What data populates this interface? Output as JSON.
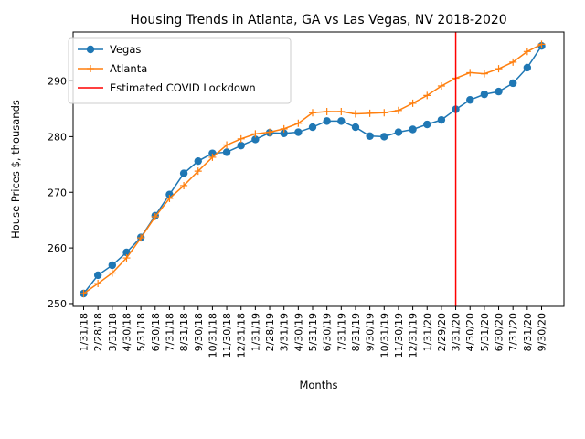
{
  "chart_data": {
    "type": "line",
    "title": "Housing Trends in Atlanta, GA vs Las Vegas, NV 2018-2020",
    "xlabel": "Months",
    "ylabel": "House Prices $, thousands",
    "ylim": [
      249.5,
      298.8
    ],
    "yticks": [
      250,
      260,
      270,
      280,
      290
    ],
    "grid": false,
    "legend_position": "upper left",
    "categories": [
      "1/31/18",
      "2/28/18",
      "3/31/18",
      "4/30/18",
      "5/31/18",
      "6/30/18",
      "7/31/18",
      "8/31/18",
      "9/30/18",
      "10/31/18",
      "11/30/18",
      "12/31/18",
      "1/31/19",
      "2/28/19",
      "3/31/19",
      "4/30/19",
      "5/31/19",
      "6/30/19",
      "7/31/19",
      "8/31/19",
      "9/30/19",
      "10/31/19",
      "11/30/19",
      "12/31/19",
      "1/31/20",
      "2/29/20",
      "3/31/20",
      "4/30/20",
      "5/31/20",
      "6/30/20",
      "7/31/20",
      "8/31/20",
      "9/30/20"
    ],
    "series": [
      {
        "name": "Vegas",
        "color": "#1f77b4",
        "marker": "circle",
        "values": [
          251.8,
          255.1,
          256.9,
          259.2,
          261.9,
          265.8,
          269.6,
          273.4,
          275.6,
          277.0,
          277.2,
          278.4,
          279.5,
          280.7,
          280.6,
          280.8,
          281.7,
          282.8,
          282.8,
          281.7,
          280.1,
          280.0,
          280.8,
          281.3,
          282.2,
          283.0,
          284.9,
          286.6,
          287.6,
          288.1,
          289.6,
          292.4,
          296.3
        ]
      },
      {
        "name": "Atlanta",
        "color": "#ff7f0e",
        "marker": "plus",
        "values": [
          251.8,
          253.6,
          255.5,
          258.2,
          261.8,
          265.6,
          268.9,
          271.2,
          273.8,
          276.3,
          278.5,
          279.6,
          280.5,
          280.8,
          281.4,
          282.4,
          284.3,
          284.5,
          284.5,
          284.1,
          284.2,
          284.3,
          284.7,
          286.0,
          287.4,
          289.1,
          290.5,
          291.5,
          291.3,
          292.2,
          293.4,
          295.3,
          296.6
        ]
      }
    ],
    "vline": {
      "name": "Estimated COVID Lockdown",
      "color": "#ff0000",
      "x": "3/31/20"
    }
  }
}
